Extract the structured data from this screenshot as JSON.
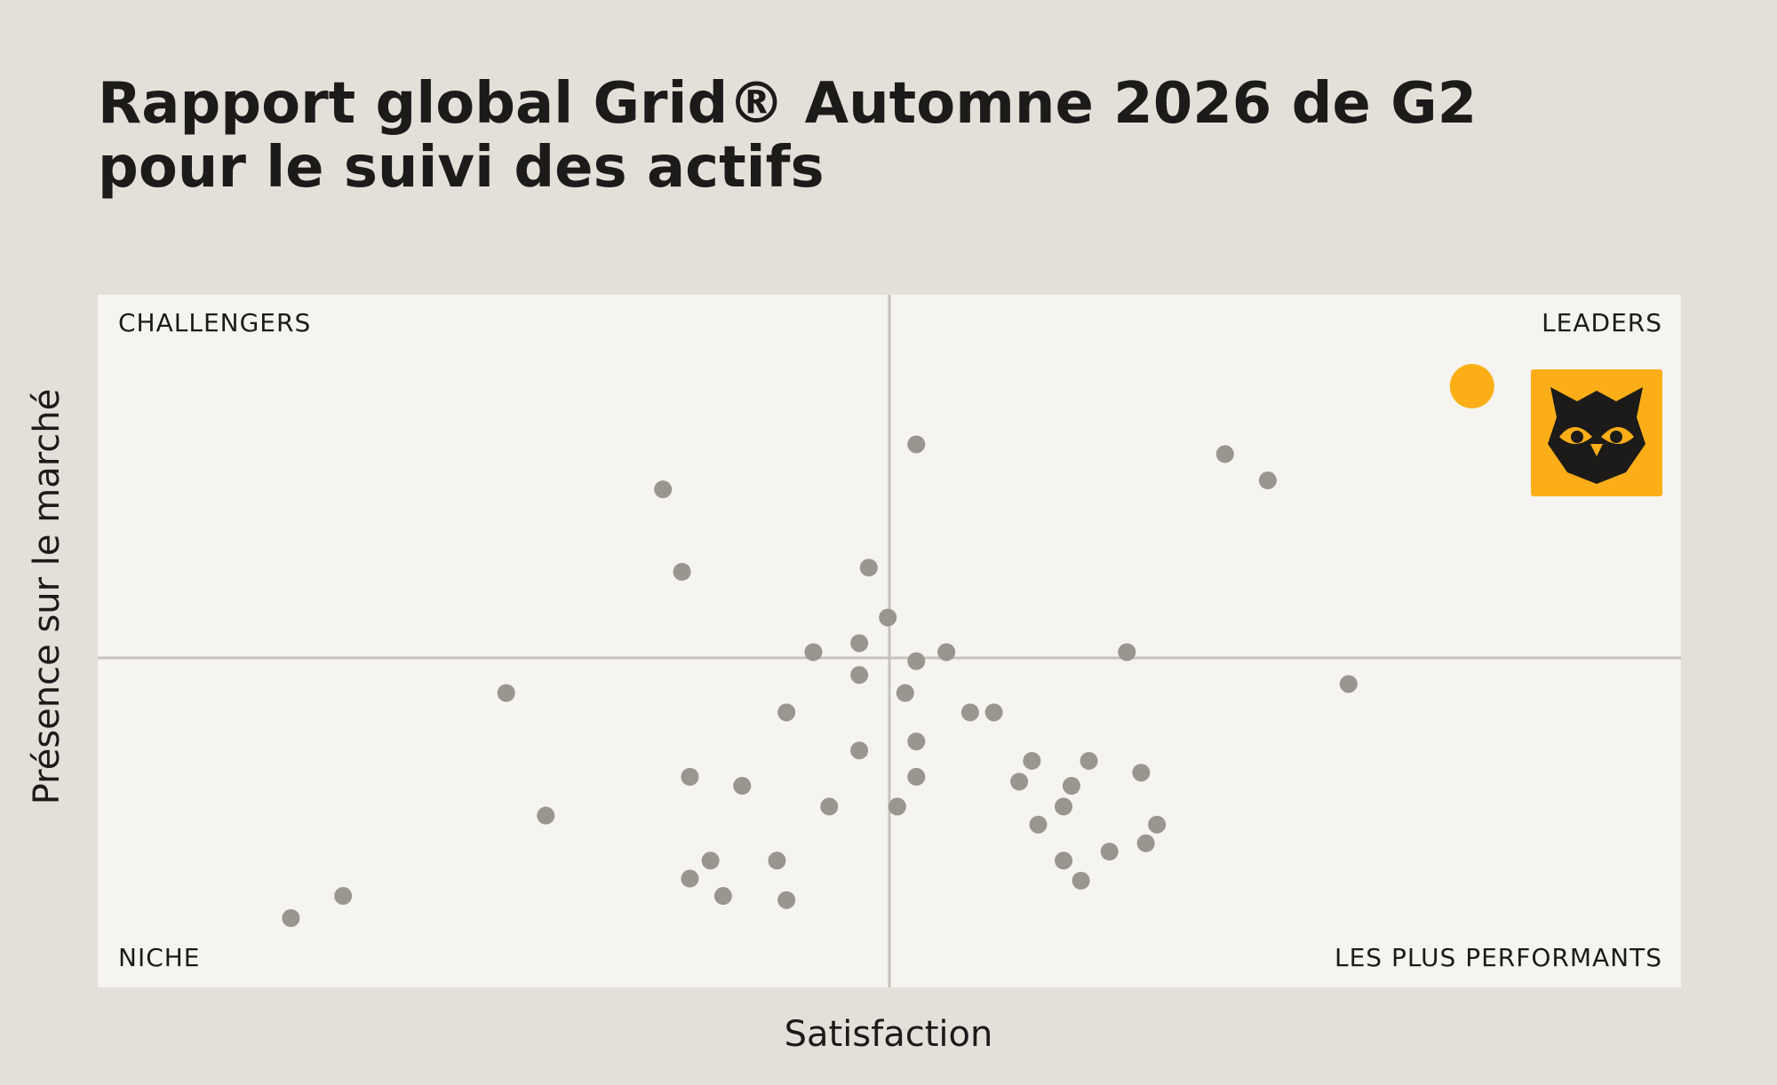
{
  "chart_data": {
    "type": "scatter",
    "title": [
      "Rapport global Grid® Automne 2026 de G2",
      "pour le suivi des actifs"
    ],
    "x_label": "Satisfaction",
    "y_label": "Présence sur le marché",
    "quadrants": {
      "top_left": "CHALLENGERS",
      "top_right": "LEADERS",
      "bottom_left": "NICHE",
      "bottom_right": "LES PLUS PERFORMANTS"
    },
    "xlim": [
      0,
      100
    ],
    "ylim": [
      0,
      100
    ],
    "series": [
      {
        "color": "#9a958e",
        "x": [
          51.7,
          35.7,
          36.9,
          48.7,
          49.9,
          71.2,
          73.9,
          45.2,
          48.1,
          51.7,
          53.6,
          65.0,
          79.0,
          48.1,
          51.0,
          25.8,
          43.5,
          55.1,
          56.6,
          48.1,
          51.7,
          59.0,
          62.6,
          37.4,
          40.7,
          51.7,
          58.2,
          61.5,
          65.9,
          28.3,
          46.2,
          50.5,
          61.0,
          59.4,
          66.9,
          38.7,
          42.9,
          61.0,
          63.9,
          66.2,
          37.4,
          39.5,
          43.5,
          62.1,
          15.5,
          12.2
        ],
        "values": [
          78.4,
          71.9,
          60.0,
          60.6,
          53.4,
          77.0,
          73.2,
          48.4,
          49.7,
          47.1,
          48.4,
          48.4,
          43.8,
          45.1,
          42.5,
          42.5,
          39.7,
          39.7,
          39.7,
          34.2,
          35.5,
          32.7,
          32.7,
          30.4,
          29.1,
          30.4,
          29.7,
          29.1,
          31.0,
          24.8,
          26.1,
          26.1,
          26.1,
          23.5,
          23.5,
          18.3,
          18.3,
          18.3,
          19.6,
          20.8,
          15.7,
          13.2,
          12.6,
          15.4,
          13.2,
          10.0
        ]
      },
      {
        "color": "#fbae17",
        "x": [
          86.8
        ],
        "values": [
          86.8
        ]
      }
    ]
  }
}
